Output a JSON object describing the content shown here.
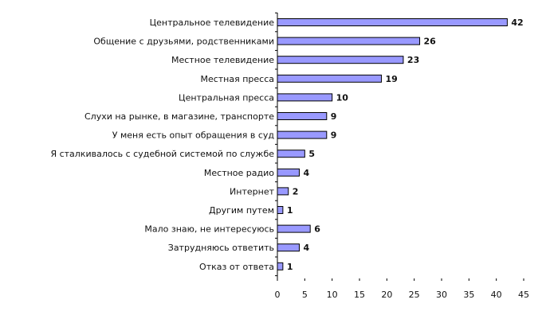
{
  "chart_data": {
    "type": "bar",
    "orientation": "horizontal",
    "categories": [
      "Центральное телевидение",
      "Общение с друзьями, родственниками",
      "Местное телевидение",
      "Местная пресса",
      "Центральная пресса",
      "Слухи на рынке, в магазине, транспорте",
      "У меня есть опыт обращения в суд",
      "Я сталкивалось с судебной системой по службе",
      "Местное радио",
      "Интернет",
      "Другим путем",
      "Мало знаю, не интересуюсь",
      "Затрудняюсь ответить",
      "Отказ от ответа"
    ],
    "values": [
      42,
      26,
      23,
      19,
      10,
      9,
      9,
      5,
      4,
      2,
      1,
      6,
      4,
      1
    ],
    "xlim": [
      0,
      45
    ],
    "xticks": [
      0,
      5,
      10,
      15,
      20,
      25,
      30,
      35,
      40,
      45
    ],
    "bar_color": "#9999ff",
    "bar_edge_color": "#000000",
    "grid": false,
    "legend": "none"
  }
}
